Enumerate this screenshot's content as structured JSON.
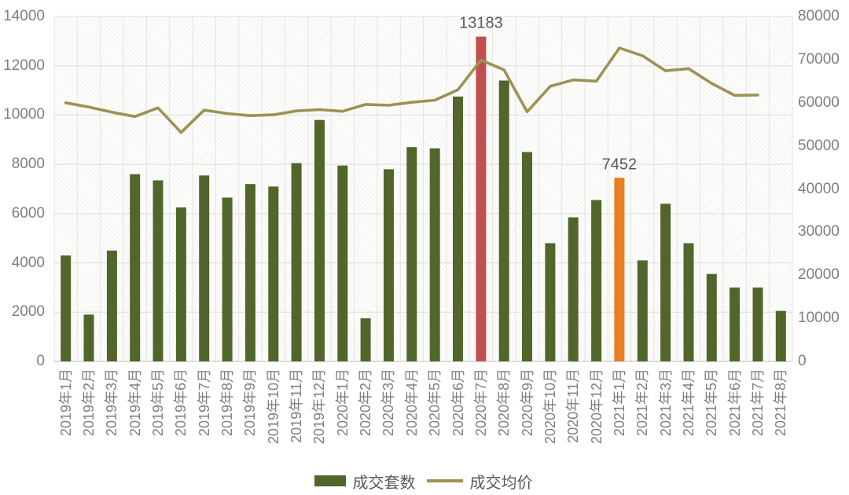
{
  "chart_data": {
    "type": "bar",
    "subtype": "bar-line-combo",
    "title": "",
    "categories": [
      "2019年1月",
      "2019年2月",
      "2019年3月",
      "2019年4月",
      "2019年5月",
      "2019年6月",
      "2019年7月",
      "2019年8月",
      "2019年9月",
      "2019年10月",
      "2019年11月",
      "2019年12月",
      "2020年1月",
      "2020年2月",
      "2020年3月",
      "2020年4月",
      "2020年5月",
      "2020年6月",
      "2020年7月",
      "2020年8月",
      "2020年9月",
      "2020年10月",
      "2020年11月",
      "2020年12月",
      "2021年1月",
      "2021年2月",
      "2021年3月",
      "2021年4月",
      "2021年5月",
      "2021年6月",
      "2021年7月",
      "2021年8月"
    ],
    "series": [
      {
        "name": "成交套数",
        "type": "bar",
        "axis": "left",
        "color": "#51662a",
        "values": [
          4300,
          1900,
          4500,
          7600,
          7350,
          6250,
          7550,
          6650,
          7200,
          7100,
          8050,
          9800,
          7950,
          1750,
          7800,
          8700,
          8650,
          10750,
          13183,
          11400,
          8500,
          4800,
          5850,
          6550,
          7452,
          4100,
          6400,
          4800,
          3550,
          3000,
          3000,
          2050
        ],
        "highlights": [
          {
            "index": 18,
            "color": "#c0504d",
            "label": "13183"
          },
          {
            "index": 24,
            "color": "#e97e24",
            "label": "7452"
          }
        ]
      },
      {
        "name": "成交均价",
        "type": "line",
        "axis": "right",
        "color": "#9c9254",
        "values": [
          60000,
          59000,
          57800,
          56800,
          58800,
          53100,
          58300,
          57500,
          57000,
          57200,
          58100,
          58400,
          58000,
          59600,
          59400,
          60100,
          60600,
          63000,
          69900,
          67600,
          57900,
          63800,
          65300,
          65000,
          72700,
          70900,
          67400,
          67900,
          64500,
          61700,
          61800,
          null
        ]
      }
    ],
    "left_axis": {
      "min": 0,
      "max": 14000,
      "tick_step": 2000,
      "ticks": [
        "0",
        "2000",
        "4000",
        "6000",
        "8000",
        "10000",
        "12000",
        "14000"
      ]
    },
    "right_axis": {
      "min": 0,
      "max": 80000,
      "tick_step": 10000,
      "ticks": [
        "0",
        "10000",
        "20000",
        "30000",
        "40000",
        "50000",
        "60000",
        "70000",
        "80000"
      ]
    },
    "grid": true,
    "legend_position": "bottom"
  },
  "colors": {
    "grid_h": "#dcdcdc",
    "grid_v": "#e4e4e4",
    "axis_line": "#bdbdbd",
    "tick_text": "#7f7f7f",
    "annotation_text": "#595959",
    "legend_text": "#595959"
  }
}
